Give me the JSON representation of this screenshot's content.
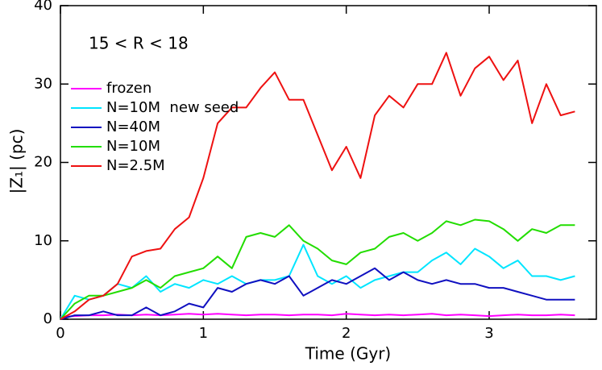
{
  "chart_data": {
    "type": "line",
    "annotation": "15 < R < 18",
    "x_label": "Time (Gyr)",
    "y_label": "|Z₁| (pc)",
    "x": [
      0,
      0.1,
      0.2,
      0.3,
      0.4,
      0.5,
      0.6,
      0.7,
      0.8,
      0.9,
      1.0,
      1.1,
      1.2,
      1.3,
      1.4,
      1.5,
      1.6,
      1.7,
      1.8,
      1.9,
      2.0,
      2.1,
      2.2,
      2.3,
      2.4,
      2.5,
      2.6,
      2.7,
      2.8,
      2.9,
      3.0,
      3.1,
      3.2,
      3.3,
      3.4,
      3.5,
      3.6
    ],
    "series": [
      {
        "name": "frozen",
        "color": "#ff00ff",
        "values": [
          0.3,
          0.4,
          0.5,
          0.5,
          0.6,
          0.5,
          0.6,
          0.5,
          0.6,
          0.7,
          0.6,
          0.7,
          0.6,
          0.5,
          0.6,
          0.6,
          0.5,
          0.6,
          0.6,
          0.5,
          0.7,
          0.6,
          0.5,
          0.6,
          0.5,
          0.6,
          0.7,
          0.5,
          0.6,
          0.5,
          0.4,
          0.5,
          0.6,
          0.5,
          0.5,
          0.6,
          0.5
        ]
      },
      {
        "name": "N=10M  new seed",
        "color": "#00e5ff",
        "values": [
          0,
          3,
          2.5,
          3,
          4.5,
          4,
          5.5,
          3.5,
          4.5,
          4,
          5,
          4.5,
          5.5,
          4.5,
          5,
          5,
          5.5,
          9.5,
          5.5,
          4.5,
          5.5,
          4,
          5,
          5.5,
          6,
          6,
          7.5,
          8.5,
          7,
          9,
          8,
          6.5,
          7.5,
          5.5,
          5.5,
          5,
          5.5
        ]
      },
      {
        "name": "N=40M",
        "color": "#1010c0",
        "values": [
          0,
          0.5,
          0.5,
          1,
          0.5,
          0.5,
          1.5,
          0.5,
          1,
          2,
          1.5,
          4,
          3.5,
          4.5,
          5,
          4.5,
          5.5,
          3,
          4,
          5,
          4.5,
          5.5,
          6.5,
          5,
          6,
          5,
          4.5,
          5,
          4.5,
          4.5,
          4,
          4,
          3.5,
          3,
          2.5,
          2.5,
          2.5
        ]
      },
      {
        "name": "N=10M",
        "color": "#22dd00",
        "values": [
          0,
          2,
          3,
          3,
          3.5,
          4,
          5,
          4,
          5.5,
          6,
          6.5,
          8,
          6.5,
          10.5,
          11,
          10.5,
          12,
          10,
          9,
          7.5,
          7,
          8.5,
          9,
          10.5,
          11,
          10,
          11,
          12.5,
          12,
          12.7,
          12.5,
          11.5,
          10,
          11.5,
          11,
          12,
          12
        ]
      },
      {
        "name": "N=2.5M",
        "color": "#ee1111",
        "values": [
          0,
          1,
          2.5,
          3,
          4.5,
          8,
          8.7,
          9,
          11.5,
          13,
          18,
          25,
          27,
          27,
          29.5,
          31.5,
          28,
          28,
          23.5,
          19,
          22,
          18,
          26,
          28.5,
          27,
          30,
          30,
          34,
          28.5,
          32,
          33.5,
          30.5,
          33,
          25,
          30,
          26,
          26.5
        ]
      }
    ],
    "xlim": [
      0,
      3.75
    ],
    "xticks": [
      0,
      1,
      2,
      3
    ],
    "ylim": [
      0,
      40
    ],
    "yticks": [
      0,
      10,
      20,
      30,
      40
    ]
  }
}
